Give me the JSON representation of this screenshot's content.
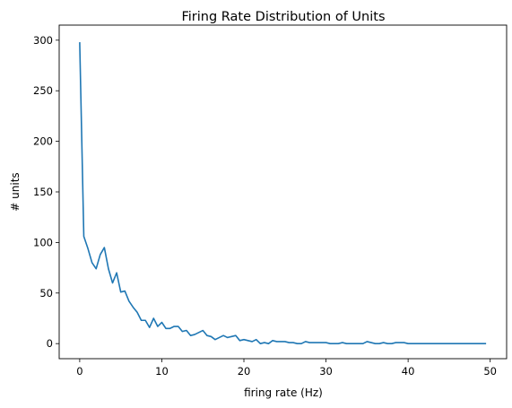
{
  "chart_data": {
    "type": "line",
    "title": "Firing Rate Distribution of Units",
    "xlabel": "firing rate (Hz)",
    "ylabel": "# units",
    "xlim": [
      -2.5,
      52.0
    ],
    "ylim": [
      -14.9,
      314.9
    ],
    "xticks": [
      0,
      10,
      20,
      30,
      40,
      50
    ],
    "yticks": [
      0,
      50,
      100,
      150,
      200,
      250,
      300
    ],
    "grid": false,
    "line_color": "#1f77b4",
    "series": [
      {
        "x": [
          0.0,
          0.5,
          1.0,
          1.5,
          2.0,
          2.5,
          3.0,
          3.5,
          4.0,
          4.5,
          5.0,
          5.5,
          6.0,
          6.5,
          7.0,
          7.5,
          8.0,
          8.5,
          9.0,
          9.5,
          10.0,
          10.5,
          11.0,
          11.5,
          12.0,
          12.5,
          13.0,
          13.5,
          14.0,
          14.5,
          15.0,
          15.5,
          16.0,
          16.5,
          17.0,
          17.5,
          18.0,
          18.5,
          19.0,
          19.5,
          20.0,
          20.5,
          21.0,
          21.5,
          22.0,
          22.5,
          23.0,
          23.5,
          24.0,
          24.5,
          25.0,
          25.5,
          26.0,
          26.5,
          27.0,
          27.5,
          28.0,
          28.5,
          29.0,
          29.5,
          30.0,
          30.5,
          31.0,
          31.5,
          32.0,
          32.5,
          33.0,
          33.5,
          34.0,
          34.5,
          35.0,
          35.5,
          36.0,
          36.5,
          37.0,
          37.5,
          38.0,
          38.5,
          39.0,
          39.5,
          40.0,
          40.5,
          41.0,
          41.5,
          42.0,
          42.5,
          43.0,
          43.5,
          44.0,
          44.5,
          45.0,
          45.5,
          46.0,
          46.5,
          47.0,
          47.5,
          48.0,
          48.5,
          49.0,
          49.5
        ],
        "values": [
          298,
          106,
          94,
          80,
          74,
          88,
          95,
          74,
          60,
          70,
          51,
          52,
          42,
          36,
          31,
          23,
          23,
          16,
          25,
          17,
          21,
          15,
          15,
          17,
          17,
          12,
          13,
          8,
          9,
          11,
          13,
          8,
          7,
          4,
          6,
          8,
          6,
          7,
          8,
          3,
          4,
          3,
          2,
          4,
          0,
          1,
          0,
          3,
          2,
          2,
          2,
          1,
          1,
          0,
          0,
          2,
          1,
          1,
          1,
          1,
          1,
          0,
          0,
          0,
          1,
          0,
          0,
          0,
          0,
          0,
          2,
          1,
          0,
          0,
          1,
          0,
          0,
          1,
          1,
          1,
          0,
          0,
          0,
          0,
          0,
          0,
          0,
          0,
          0,
          0,
          0,
          0,
          0,
          0,
          0,
          0,
          0,
          0,
          0,
          0
        ]
      }
    ]
  }
}
